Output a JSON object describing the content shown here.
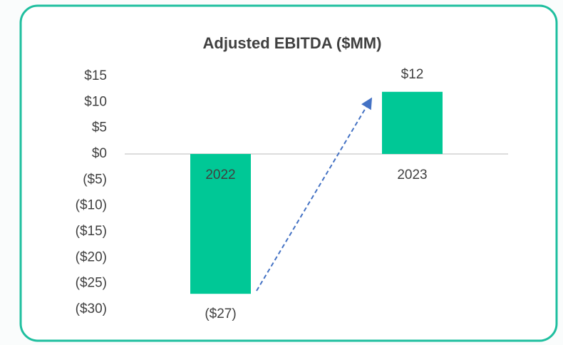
{
  "chart_data": {
    "type": "bar",
    "title": "Adjusted EBITDA ($MM)",
    "categories": [
      "2022",
      "2023"
    ],
    "values": [
      -27,
      12
    ],
    "value_labels": [
      "($27)",
      "$12"
    ],
    "color": "#00c896",
    "ylim": [
      -30,
      15
    ],
    "yticks": [
      {
        "value": 15,
        "label": "$15"
      },
      {
        "value": 10,
        "label": "$10"
      },
      {
        "value": 5,
        "label": "$5"
      },
      {
        "value": 0,
        "label": "$0"
      },
      {
        "value": -5,
        "label": "($5)"
      },
      {
        "value": -10,
        "label": "($10)"
      },
      {
        "value": -15,
        "label": "($15)"
      },
      {
        "value": -20,
        "label": "($20)"
      },
      {
        "value": -25,
        "label": "($25)"
      },
      {
        "value": -30,
        "label": "($30)"
      }
    ]
  }
}
